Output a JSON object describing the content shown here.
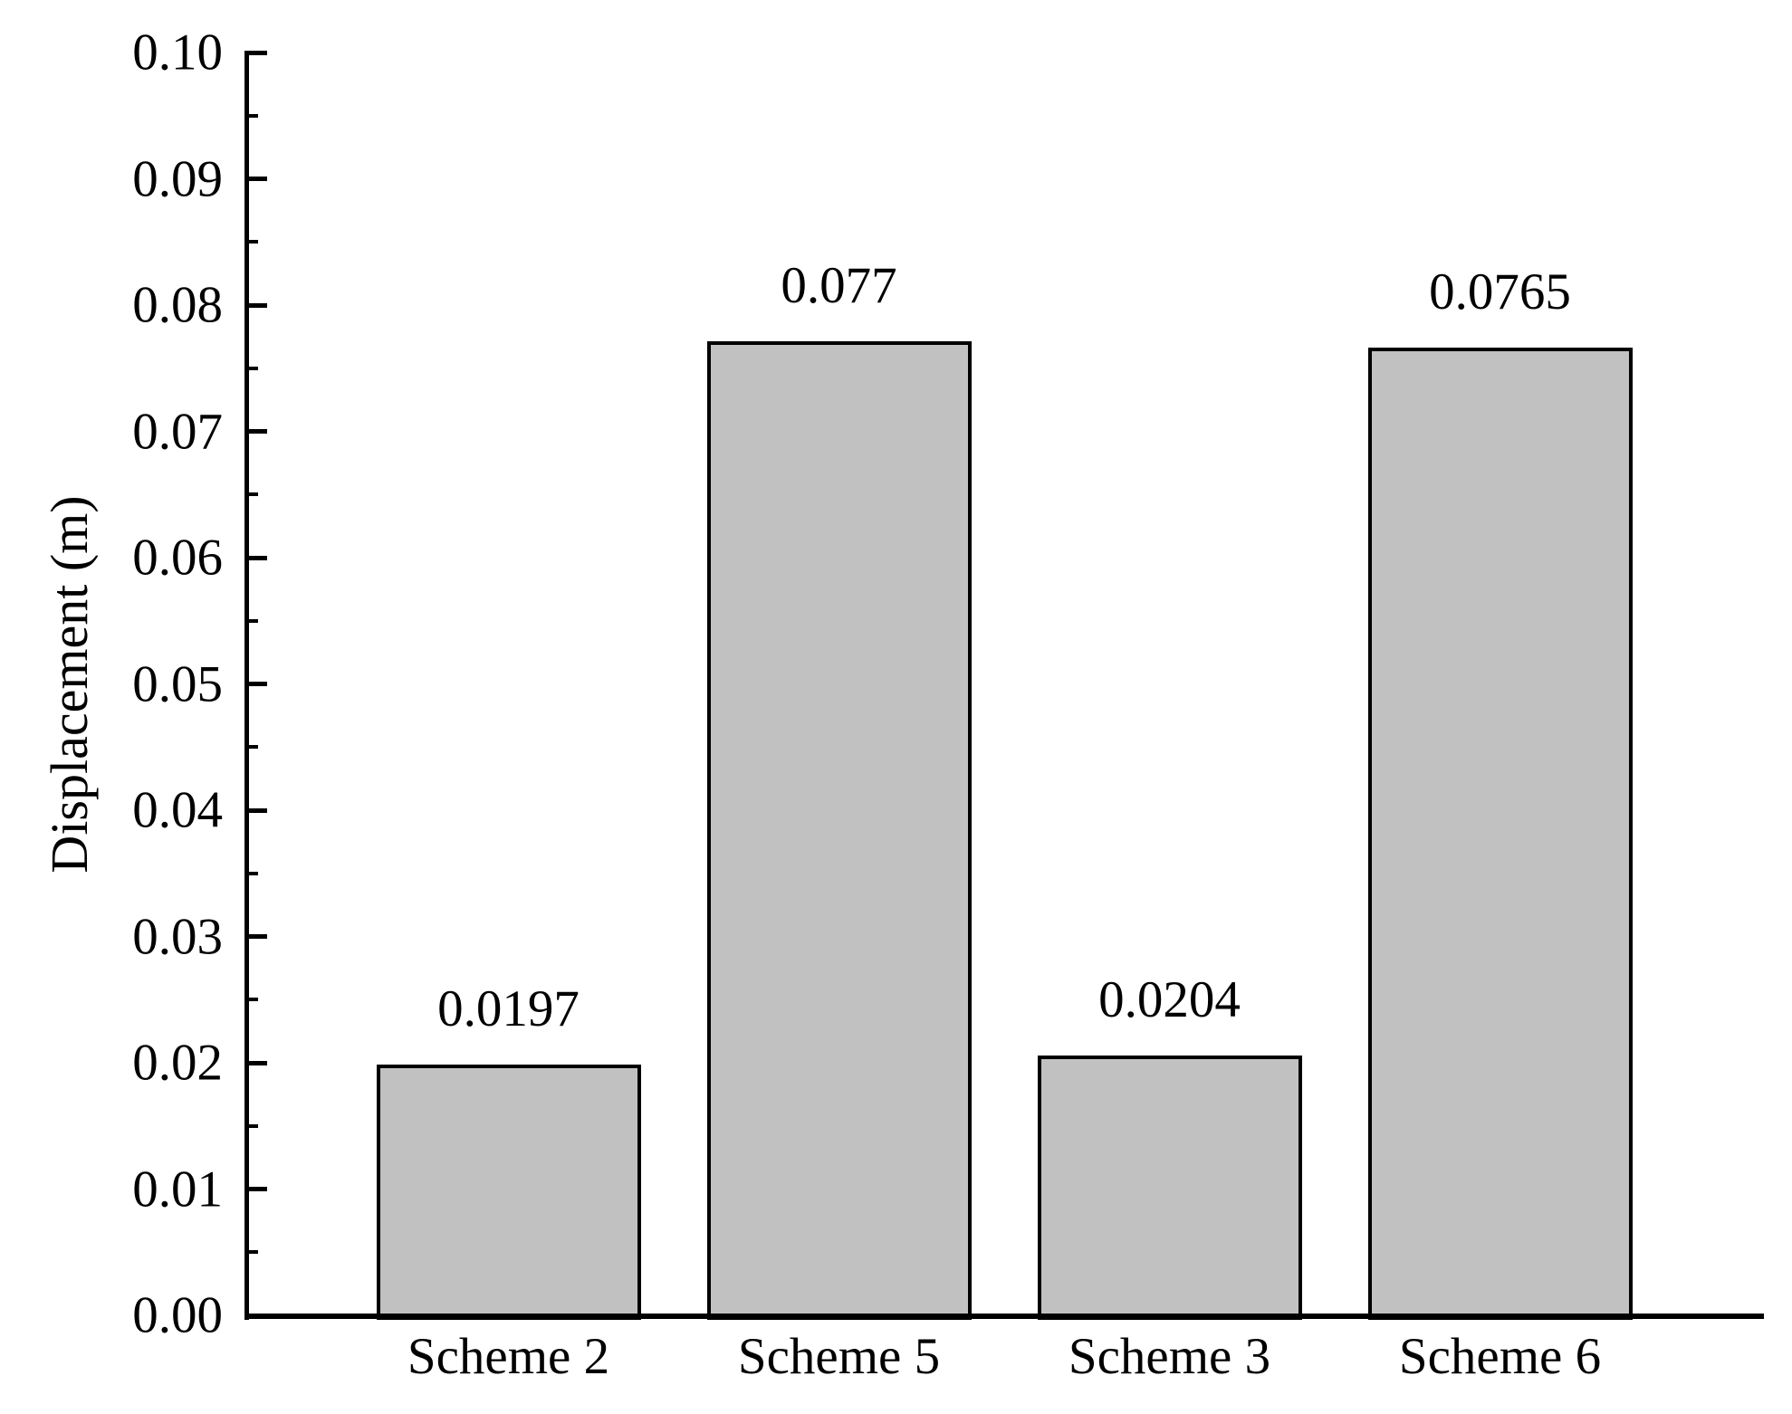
{
  "chart_data": {
    "type": "bar",
    "title": "",
    "xlabel": "",
    "ylabel": "Displacement (m)",
    "categories": [
      "Scheme 2",
      "Scheme 5",
      "Scheme 3",
      "Scheme 6"
    ],
    "values": [
      0.0197,
      0.077,
      0.0204,
      0.0765
    ],
    "value_labels": [
      "0.0197",
      "0.077",
      "0.0204",
      "0.0765"
    ],
    "ylim": [
      0.0,
      0.1
    ],
    "y_major_step": 0.01,
    "y_minor_step": 0.005,
    "y_tick_labels": [
      "0.00",
      "0.01",
      "0.02",
      "0.03",
      "0.04",
      "0.05",
      "0.06",
      "0.07",
      "0.08",
      "0.09",
      "0.10"
    ],
    "grid": false,
    "legend": null,
    "colors": {
      "bar_fill": "#c1c1c1",
      "bar_edge": "#000000",
      "axis": "#000000",
      "text": "#000000",
      "background": "#ffffff"
    }
  }
}
